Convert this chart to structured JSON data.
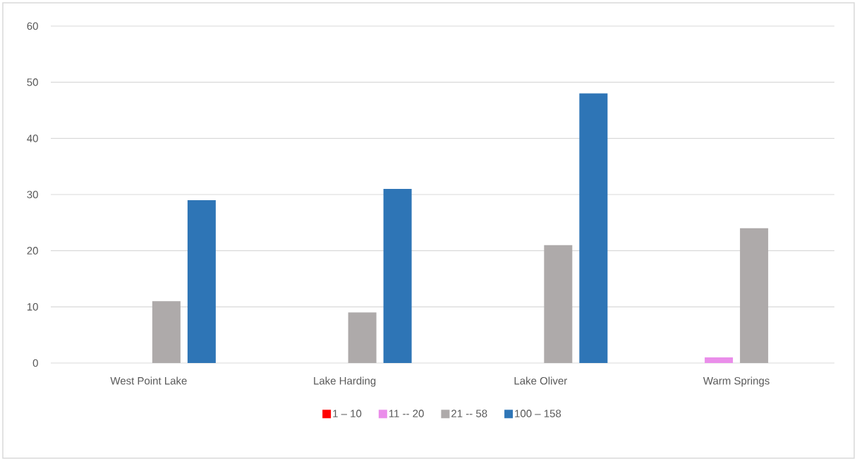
{
  "chart_data": {
    "type": "bar",
    "categories": [
      "West Point Lake",
      "Lake Harding",
      "Lake Oliver",
      "Warm Springs"
    ],
    "series": [
      {
        "name": "1 – 10",
        "color": "#ff0000",
        "values": [
          0,
          0,
          0,
          0
        ]
      },
      {
        "name": "11 -- 20",
        "color": "#ea8eea",
        "values": [
          0,
          0,
          0,
          1
        ]
      },
      {
        "name": "21 -- 58",
        "color": "#aeaaaa",
        "values": [
          11,
          9,
          21,
          24
        ]
      },
      {
        "name": "100 – 158",
        "color": "#2e75b6",
        "values": [
          29,
          31,
          48,
          0
        ]
      }
    ],
    "ylim": [
      0,
      60
    ],
    "yticks": [
      0,
      10,
      20,
      30,
      40,
      50,
      60
    ],
    "grid": "y",
    "legend": "bottom"
  }
}
